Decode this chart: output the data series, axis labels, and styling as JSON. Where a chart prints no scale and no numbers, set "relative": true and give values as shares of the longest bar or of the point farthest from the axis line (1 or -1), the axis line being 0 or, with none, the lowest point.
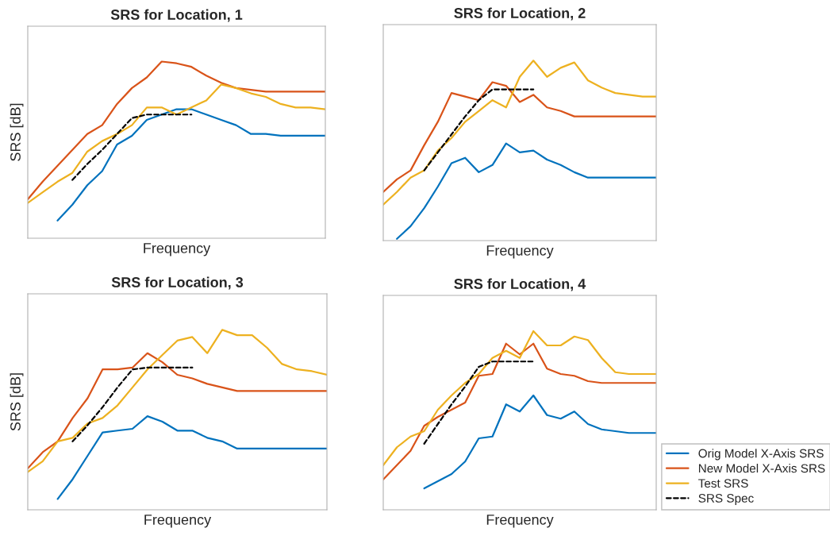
{
  "chart_data": [
    {
      "type": "line",
      "title": "SRS for Location, 1",
      "xlabel": "Frequency",
      "ylabel": "SRS [dB]",
      "relative": true,
      "tick_labels": false,
      "grid": false,
      "legend": false,
      "categories": [
        null,
        null,
        null,
        null,
        null,
        null,
        null,
        null,
        null,
        null,
        null,
        null,
        null,
        null,
        null,
        null,
        null,
        null,
        null,
        null,
        null
      ],
      "series": [
        {
          "color": "#0072bd",
          "line_style": "solid",
          "values": [
            null,
            null,
            0.1,
            0.19,
            0.3,
            0.38,
            0.53,
            0.58,
            0.67,
            0.7,
            0.73,
            0.73,
            0.7,
            0.67,
            0.64,
            0.59,
            0.59,
            0.58,
            0.58,
            0.58,
            0.58
          ]
        },
        {
          "color": "#d95319",
          "line_style": "solid",
          "values": [
            0.22,
            0.32,
            0.41,
            0.5,
            0.59,
            0.64,
            0.76,
            0.85,
            0.91,
            1.0,
            0.99,
            0.97,
            0.92,
            0.88,
            0.85,
            0.84,
            0.83,
            0.83,
            0.83,
            0.83,
            0.83
          ]
        },
        {
          "color": "#edb120",
          "line_style": "solid",
          "values": [
            0.2,
            0.26,
            0.32,
            0.37,
            0.49,
            0.55,
            0.59,
            0.64,
            0.74,
            0.74,
            0.7,
            0.74,
            0.78,
            0.87,
            0.85,
            0.82,
            0.8,
            0.76,
            0.74,
            0.74,
            0.73
          ]
        },
        {
          "color": "#000000",
          "line_style": "dashed",
          "values": [
            null,
            null,
            null,
            0.33,
            0.42,
            0.5,
            0.59,
            0.68,
            0.7,
            0.7,
            0.7,
            0.7,
            null,
            null,
            null,
            null,
            null,
            null,
            null,
            null,
            null
          ]
        }
      ]
    },
    {
      "type": "line",
      "title": "SRS for Location, 2",
      "xlabel": "Frequency",
      "relative": true,
      "tick_labels": false,
      "grid": false,
      "legend": false,
      "categories": [
        null,
        null,
        null,
        null,
        null,
        null,
        null,
        null,
        null,
        null,
        null,
        null,
        null,
        null,
        null,
        null,
        null,
        null,
        null,
        null,
        null
      ],
      "series": [
        {
          "color": "#0072bd",
          "line_style": "solid",
          "values": [
            null,
            0.01,
            0.08,
            0.18,
            0.3,
            0.43,
            0.46,
            0.38,
            0.42,
            0.54,
            0.49,
            0.5,
            0.45,
            0.42,
            0.38,
            0.35,
            0.35,
            0.35,
            0.35,
            0.35,
            0.35
          ]
        },
        {
          "color": "#d95319",
          "line_style": "solid",
          "values": [
            0.27,
            0.34,
            0.39,
            0.53,
            0.66,
            0.82,
            0.8,
            0.78,
            0.88,
            0.86,
            0.77,
            0.81,
            0.74,
            0.72,
            0.69,
            0.69,
            0.69,
            0.69,
            0.69,
            0.69,
            0.69
          ]
        },
        {
          "color": "#edb120",
          "line_style": "solid",
          "values": [
            0.2,
            0.27,
            0.35,
            0.39,
            0.5,
            0.57,
            0.66,
            0.72,
            0.78,
            0.74,
            0.91,
            1.0,
            0.91,
            0.96,
            0.99,
            0.89,
            0.85,
            0.82,
            0.81,
            0.8,
            0.8
          ]
        },
        {
          "color": "#000000",
          "line_style": "dashed",
          "values": [
            null,
            null,
            null,
            0.39,
            0.49,
            0.59,
            0.69,
            0.78,
            0.84,
            0.84,
            0.84,
            0.84,
            null,
            null,
            null,
            null,
            null,
            null,
            null,
            null,
            null
          ]
        }
      ]
    },
    {
      "type": "line",
      "title": "SRS for Location, 3",
      "xlabel": "Frequency",
      "ylabel": "SRS [dB]",
      "relative": true,
      "tick_labels": false,
      "grid": false,
      "legend": false,
      "categories": [
        null,
        null,
        null,
        null,
        null,
        null,
        null,
        null,
        null,
        null,
        null,
        null,
        null,
        null,
        null,
        null,
        null,
        null,
        null,
        null,
        null
      ],
      "series": [
        {
          "color": "#0072bd",
          "line_style": "solid",
          "values": [
            null,
            null,
            0.06,
            0.17,
            0.3,
            0.43,
            0.44,
            0.45,
            0.52,
            0.49,
            0.44,
            0.44,
            0.4,
            0.38,
            0.34,
            0.34,
            0.34,
            0.34,
            0.34,
            0.34,
            0.34
          ]
        },
        {
          "color": "#d95319",
          "line_style": "solid",
          "values": [
            0.23,
            0.32,
            0.38,
            0.51,
            0.62,
            0.78,
            0.78,
            0.79,
            0.87,
            0.82,
            0.75,
            0.73,
            0.7,
            0.68,
            0.66,
            0.66,
            0.66,
            0.66,
            0.66,
            0.66,
            0.66
          ]
        },
        {
          "color": "#edb120",
          "line_style": "solid",
          "values": [
            0.21,
            0.27,
            0.38,
            0.4,
            0.48,
            0.51,
            0.58,
            0.68,
            0.78,
            0.86,
            0.94,
            0.96,
            0.87,
            1.0,
            0.97,
            0.97,
            0.9,
            0.81,
            0.78,
            0.77,
            0.75
          ]
        },
        {
          "color": "#000000",
          "line_style": "dashed",
          "values": [
            null,
            null,
            null,
            0.38,
            0.47,
            0.57,
            0.68,
            0.78,
            0.79,
            0.79,
            0.79,
            0.79,
            null,
            null,
            null,
            null,
            null,
            null,
            null,
            null,
            null
          ]
        }
      ]
    },
    {
      "type": "line",
      "title": "SRS for Location, 4",
      "xlabel": "Frequency",
      "relative": true,
      "tick_labels": false,
      "grid": false,
      "legend": "right",
      "categories": [
        null,
        null,
        null,
        null,
        null,
        null,
        null,
        null,
        null,
        null,
        null,
        null,
        null,
        null,
        null,
        null,
        null,
        null,
        null,
        null,
        null
      ],
      "series": [
        {
          "name": "Orig Model X-Axis SRS",
          "color": "#0072bd",
          "line_style": "solid",
          "values": [
            null,
            null,
            null,
            0.12,
            0.16,
            0.2,
            0.27,
            0.4,
            0.41,
            0.59,
            0.55,
            0.64,
            0.53,
            0.51,
            0.55,
            0.48,
            0.45,
            0.44,
            0.43,
            0.43,
            0.43
          ]
        },
        {
          "name": "New Model X-Axis SRS",
          "color": "#d95319",
          "line_style": "solid",
          "values": [
            0.17,
            0.25,
            0.33,
            0.47,
            0.52,
            0.56,
            0.6,
            0.75,
            0.76,
            0.93,
            0.87,
            0.93,
            0.79,
            0.76,
            0.75,
            0.72,
            0.71,
            0.71,
            0.71,
            0.71,
            0.71
          ]
        },
        {
          "name": "Test SRS",
          "color": "#edb120",
          "line_style": "solid",
          "values": [
            0.25,
            0.35,
            0.41,
            0.44,
            0.56,
            0.64,
            0.71,
            0.76,
            0.85,
            0.89,
            0.85,
            1.0,
            0.92,
            0.92,
            0.97,
            0.95,
            0.85,
            0.77,
            0.76,
            0.76,
            0.76
          ]
        },
        {
          "name": "SRS Spec",
          "color": "#000000",
          "line_style": "dashed",
          "values": [
            null,
            null,
            null,
            0.37,
            0.48,
            0.59,
            0.69,
            0.8,
            0.83,
            0.83,
            0.83,
            0.83,
            null,
            null,
            null,
            null,
            null,
            null,
            null,
            null,
            null
          ]
        }
      ]
    }
  ]
}
